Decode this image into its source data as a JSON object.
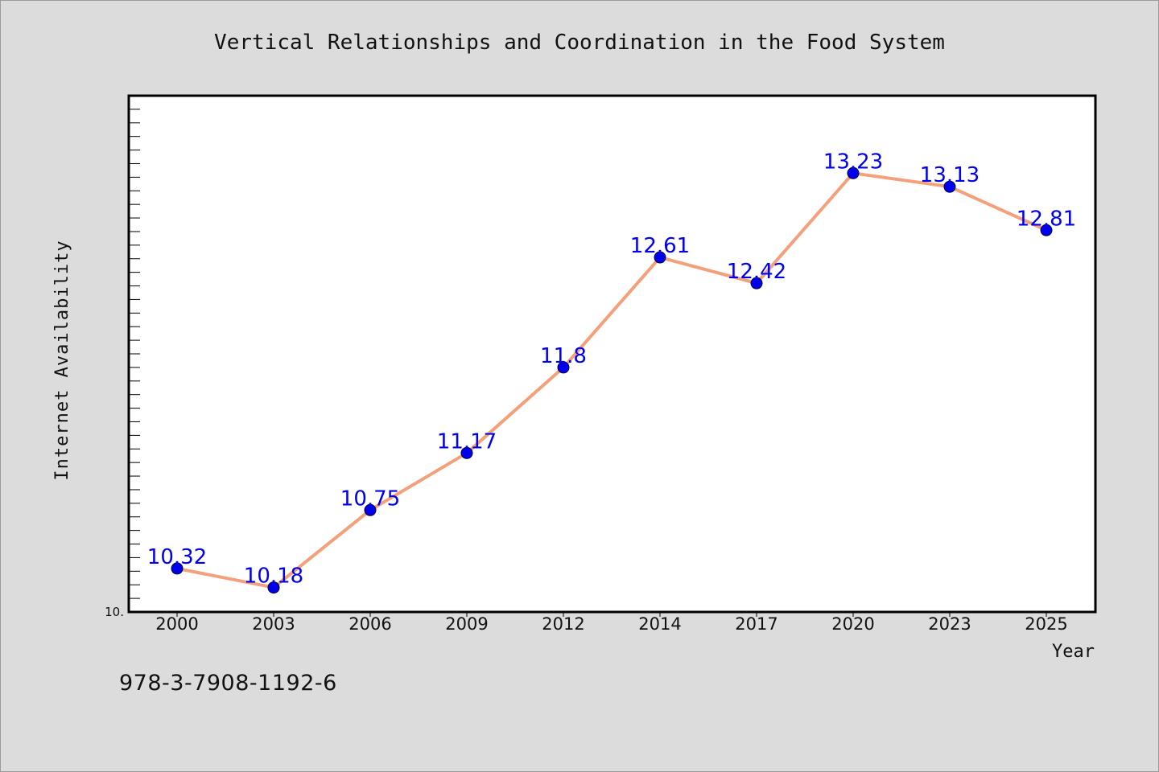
{
  "chart_data": {
    "type": "line",
    "title": "Vertical Relationships and Coordination in the Food System",
    "xlabel": "Year",
    "ylabel": "Internet Availability",
    "categories": [
      "2000",
      "2003",
      "2006",
      "2009",
      "2012",
      "2014",
      "2017",
      "2020",
      "2023",
      "2025"
    ],
    "series": [
      {
        "values": [
          10.32,
          10.18,
          10.75,
          11.17,
          11.8,
          12.61,
          12.42,
          13.23,
          13.13,
          12.81
        ],
        "data_labels": [
          "10.32",
          "10.18",
          "10.75",
          "11.17",
          "11.8",
          "12.61",
          "12.42",
          "13.23",
          "13.13",
          "12.81"
        ]
      }
    ],
    "ylim": [
      10.0,
      13.8
    ],
    "y_tick_labels": [
      "10."
    ],
    "line_color": "#f4a07a",
    "marker_color": "#0000ee",
    "label_color": "#0000ee",
    "background": "#dcdcdc",
    "plot_background": "#ffffff",
    "grid": false,
    "legend": "none"
  },
  "footer": {
    "isbn": "978-3-7908-1192-6"
  }
}
